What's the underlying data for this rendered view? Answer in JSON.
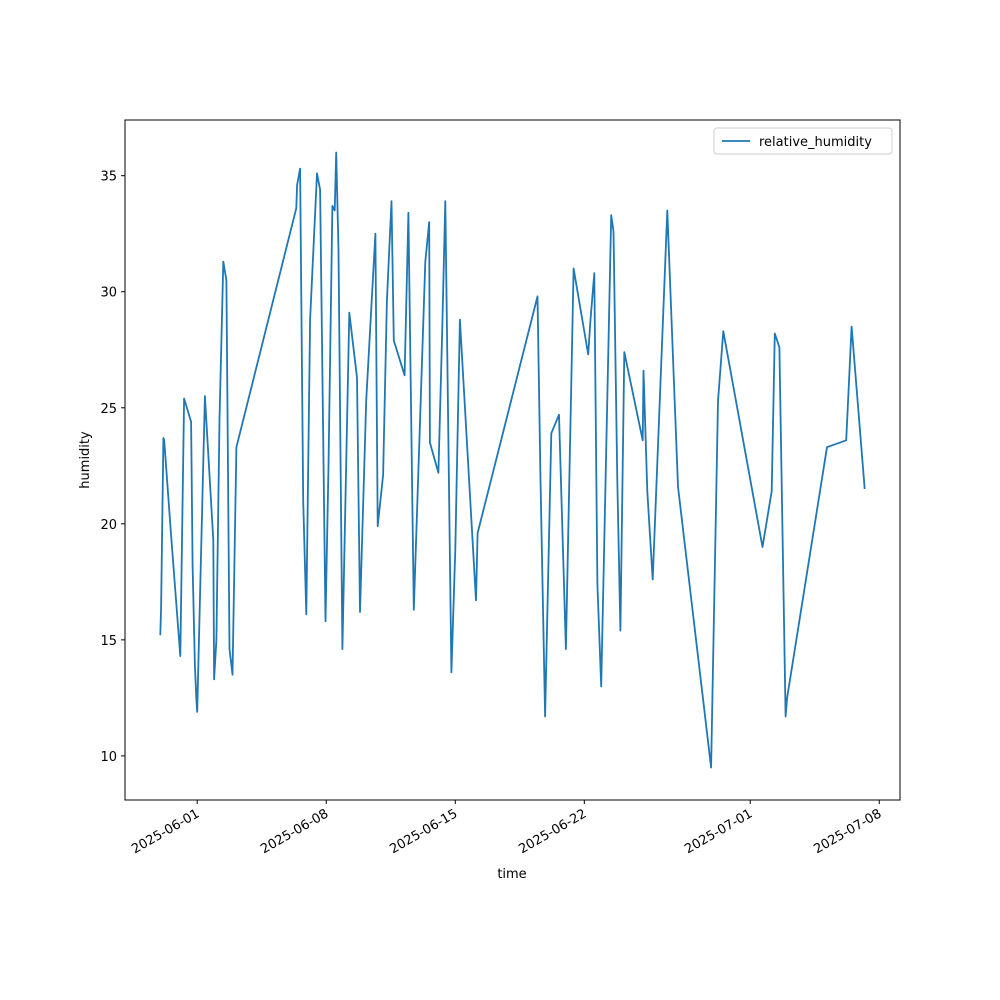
{
  "chart_data": {
    "type": "line",
    "xlabel": "time",
    "ylabel": "humidity",
    "x": [
      "2025-05-30 00:00",
      "2025-05-30 01:00",
      "2025-05-30 04:00",
      "2025-05-30 05:00",
      "2025-05-30 14:00",
      "2025-05-31 02:00",
      "2025-05-31 07:00",
      "2025-05-31 16:00",
      "2025-05-31 18:00",
      "2025-05-31 21:00",
      "2025-05-31 23:00",
      "2025-06-01 00:00",
      "2025-06-01 10:00",
      "2025-06-01 21:00",
      "2025-06-01 22:00",
      "2025-06-02 01:00",
      "2025-06-02 05:00",
      "2025-06-02 10:00",
      "2025-06-02 14:00",
      "2025-06-02 18:00",
      "2025-06-02 22:00",
      "2025-06-03 03:00",
      "2025-06-06 09:00",
      "2025-06-06 10:00",
      "2025-06-06 14:00",
      "2025-06-06 18:00",
      "2025-06-06 22:00",
      "2025-06-07 03:00",
      "2025-06-07 12:00",
      "2025-06-07 16:00",
      "2025-06-07 23:00",
      "2025-06-08 03:00",
      "2025-06-08 08:00",
      "2025-06-08 11:00",
      "2025-06-08 13:00",
      "2025-06-08 16:00",
      "2025-06-08 21:00",
      "2025-06-09 06:00",
      "2025-06-09 16:00",
      "2025-06-09 20:00",
      "2025-06-10 04:00",
      "2025-06-10 16:00",
      "2025-06-10 19:00",
      "2025-06-11 02:00",
      "2025-06-11 07:00",
      "2025-06-11 13:00",
      "2025-06-11 16:00",
      "2025-06-12 06:00",
      "2025-06-12 11:00",
      "2025-06-12 18:00",
      "2025-06-13 09:00",
      "2025-06-13 14:00",
      "2025-06-13 15:00",
      "2025-06-14 02:00",
      "2025-06-14 07:00",
      "2025-06-14 11:00",
      "2025-06-14 19:00",
      "2025-06-15 00:00",
      "2025-06-15 06:00",
      "2025-06-16 03:00",
      "2025-06-16 05:00",
      "2025-06-19 11:00",
      "2025-06-19 15:00",
      "2025-06-19 21:00",
      "2025-06-20 05:00",
      "2025-06-20 15:00",
      "2025-06-21 00:00",
      "2025-06-21 10:00",
      "2025-06-22 05:00",
      "2025-06-22 08:00",
      "2025-06-22 13:00",
      "2025-06-22 17:00",
      "2025-06-22 22:00",
      "2025-06-23 11:00",
      "2025-06-23 14:00",
      "2025-06-23 19:00",
      "2025-06-23 23:00",
      "2025-06-24 04:00",
      "2025-06-25 04:00",
      "2025-06-25 05:00",
      "2025-06-25 10:00",
      "2025-06-25 17:00",
      "2025-06-26 12:00",
      "2025-06-27 02:00",
      "2025-06-28 21:00",
      "2025-06-29 06:00",
      "2025-06-29 13:00",
      "2025-07-01 16:00",
      "2025-07-02 04:00",
      "2025-07-02 08:00",
      "2025-07-02 14:00",
      "2025-07-02 22:00",
      "2025-07-03 00:00",
      "2025-07-05 04:00",
      "2025-07-06 05:00",
      "2025-07-06 12:00",
      "2025-07-07 05:00"
    ],
    "series": [
      {
        "name": "relative_humidity",
        "color": "#1f77b4",
        "values": [
          15.2,
          16.4,
          23.7,
          23.6,
          19.5,
          14.3,
          25.4,
          24.4,
          18.2,
          13.9,
          12.4,
          11.9,
          25.5,
          19.3,
          13.3,
          15.0,
          24.5,
          31.3,
          30.5,
          14.6,
          13.5,
          23.3,
          33.6,
          34.6,
          35.3,
          21.0,
          16.1,
          28.8,
          35.1,
          34.4,
          15.8,
          22.5,
          33.7,
          33.5,
          36.0,
          31.8,
          14.6,
          29.1,
          26.3,
          16.2,
          25.3,
          32.5,
          19.9,
          22.1,
          29.6,
          33.9,
          27.9,
          26.4,
          33.4,
          16.3,
          31.3,
          33.0,
          23.5,
          22.2,
          28.3,
          33.9,
          13.6,
          18.9,
          28.8,
          16.7,
          19.6,
          29.8,
          21.9,
          11.7,
          23.9,
          24.7,
          14.6,
          31.0,
          27.3,
          28.8,
          30.8,
          17.4,
          13.0,
          33.3,
          32.6,
          21.9,
          15.4,
          27.4,
          23.6,
          26.6,
          21.4,
          17.6,
          33.5,
          21.6,
          9.5,
          25.3,
          28.3,
          19.0,
          21.4,
          28.2,
          27.6,
          11.7,
          12.5,
          23.3,
          23.6,
          28.5,
          21.5
        ]
      }
    ],
    "xlim": [
      "2025-05-28 02:00",
      "2025-07-09 03:00"
    ],
    "xticks": [
      "2025-06-01",
      "2025-06-08",
      "2025-06-15",
      "2025-06-22",
      "2025-07-01",
      "2025-07-08"
    ],
    "ylim": [
      8.1,
      37.4
    ],
    "yticks": [
      10,
      15,
      20,
      25,
      30,
      35
    ],
    "legend": "upper right"
  }
}
